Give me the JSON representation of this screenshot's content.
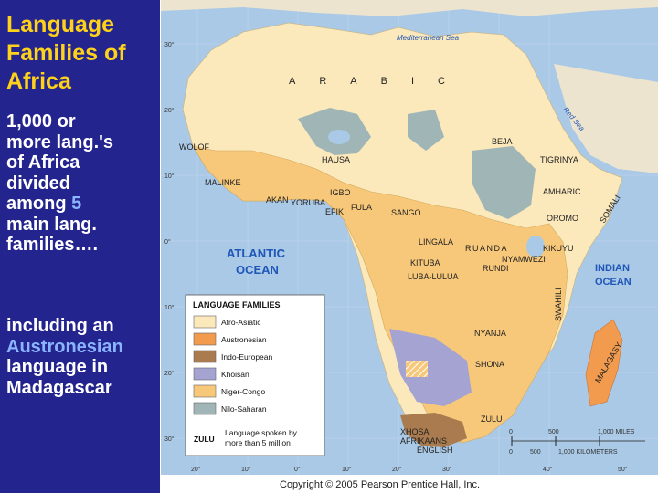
{
  "slide": {
    "title": "Language\nFamilies of\nAfrica",
    "para1": {
      "a": "1,000 or\nmore lang.'s\nof Africa\ndivided\namong ",
      "num": "5",
      "b": "\n main lang.\nfamilies…."
    },
    "para2": {
      "a": "including  an\n",
      "accent": "Austronesian",
      "b": "\nlanguage  in\nMadagascar"
    }
  },
  "map": {
    "regions": [
      "ARABIC"
    ],
    "ocean_labels": {
      "mediterranean": "Mediterranean Sea",
      "red_sea": "Red Sea",
      "atlantic_1": "ATLANTIC",
      "atlantic_2": "OCEAN",
      "indian_1": "INDIAN",
      "indian_2": "OCEAN"
    },
    "languages": [
      "WOLOF",
      "MALINKE",
      "HAUSA",
      "AKAN",
      "YORUBA",
      "IGBO",
      "EFIK",
      "FULA",
      "SANGO",
      "BEJA",
      "TIGRINYA",
      "AMHARIC",
      "OROMO",
      "SOMALI",
      "LINGALA",
      "RUANDA",
      "KIKUYU",
      "NYAMWEZI",
      "RUNDI",
      "KITUBA",
      "LUBA-LULUA",
      "SWAHILI",
      "NYANJA",
      "SHONA",
      "ZULU",
      "XHOSA",
      "AFRIKAANS",
      "ENGLISH",
      "MALAGASY"
    ],
    "latitudes": [
      "30°",
      "20°",
      "10°",
      "0°",
      "10°",
      "20°",
      "30°"
    ],
    "longitudes": [
      "20°",
      "10°",
      "0°",
      "10°",
      "20°",
      "30°",
      "40°",
      "50°"
    ],
    "legend": {
      "title": "LANGUAGE FAMILIES",
      "items": [
        {
          "label": "Afro-Asiatic",
          "color": "#fbe8bb"
        },
        {
          "label": "Austronesian",
          "color": "#f29a4e"
        },
        {
          "label": "Indo-European",
          "color": "#a97b4f"
        },
        {
          "label": "Khoisan",
          "color": "#a5a3d2"
        },
        {
          "label": "Niger-Congo",
          "color": "#f7c87a"
        },
        {
          "label": "Nilo-Saharan",
          "color": "#9fb5b6"
        }
      ],
      "note_sample": "ZULU",
      "note_1": "Language spoken by",
      "note_2": "more than 5 million"
    },
    "scale": {
      "miles": [
        "0",
        "500",
        "1,000 MILES"
      ],
      "km": [
        "0",
        "500",
        "1,000 KILOMETERS"
      ]
    },
    "copyright": "Copyright © 2005 Pearson Prentice Hall, Inc.",
    "colors": {
      "water": "#a9c9e6",
      "land_border": "#d9c9a8"
    }
  }
}
